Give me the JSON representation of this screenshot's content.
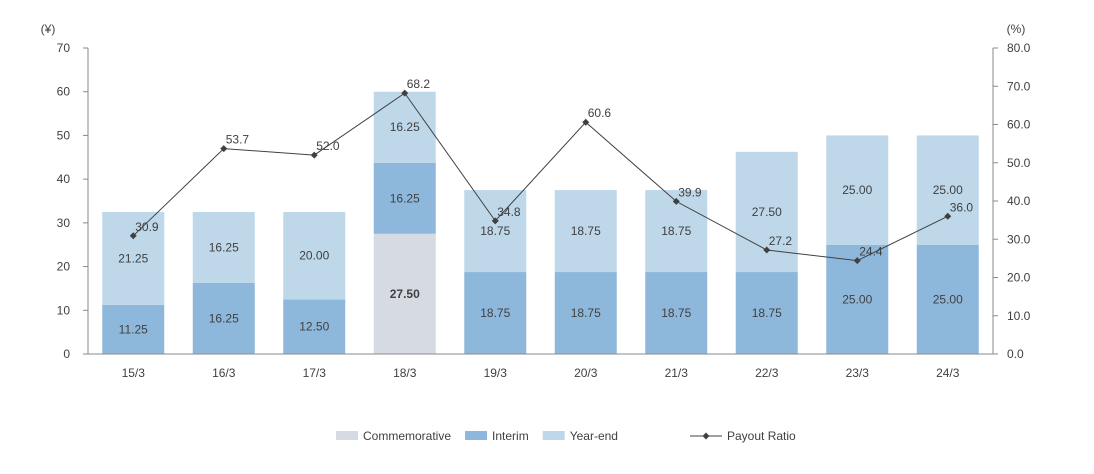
{
  "chart_data": {
    "type": "bar",
    "stacked": true,
    "categories": [
      "15/3",
      "16/3",
      "17/3",
      "18/3",
      "19/3",
      "20/3",
      "21/3",
      "22/3",
      "23/3",
      "24/3"
    ],
    "series": [
      {
        "name": "Commemorative",
        "color": "#d6dbe3",
        "values": [
          0,
          0,
          0,
          27.5,
          0,
          0,
          0,
          0,
          0,
          0
        ]
      },
      {
        "name": "Interim",
        "color": "#8db8db",
        "values": [
          11.25,
          16.25,
          12.5,
          16.25,
          18.75,
          18.75,
          18.75,
          18.75,
          25.0,
          25.0
        ]
      },
      {
        "name": "Year-end",
        "color": "#bed8ea",
        "values": [
          21.25,
          16.25,
          20.0,
          16.25,
          18.75,
          18.75,
          18.75,
          27.5,
          25.0,
          25.0
        ]
      }
    ],
    "line_series": {
      "name": "Payout Ratio",
      "type": "line",
      "axis": "right",
      "color": "#404040",
      "values": [
        30.9,
        53.7,
        52.0,
        68.2,
        34.8,
        60.6,
        39.9,
        27.2,
        24.4,
        36.0
      ]
    },
    "left_axis": {
      "unit": "(¥)",
      "min": 0,
      "max": 70,
      "step": 10
    },
    "right_axis": {
      "unit": "(%)",
      "min": 0,
      "max": 80,
      "step": 10,
      "decimals": 1
    },
    "legend": {
      "position": "bottom"
    }
  }
}
